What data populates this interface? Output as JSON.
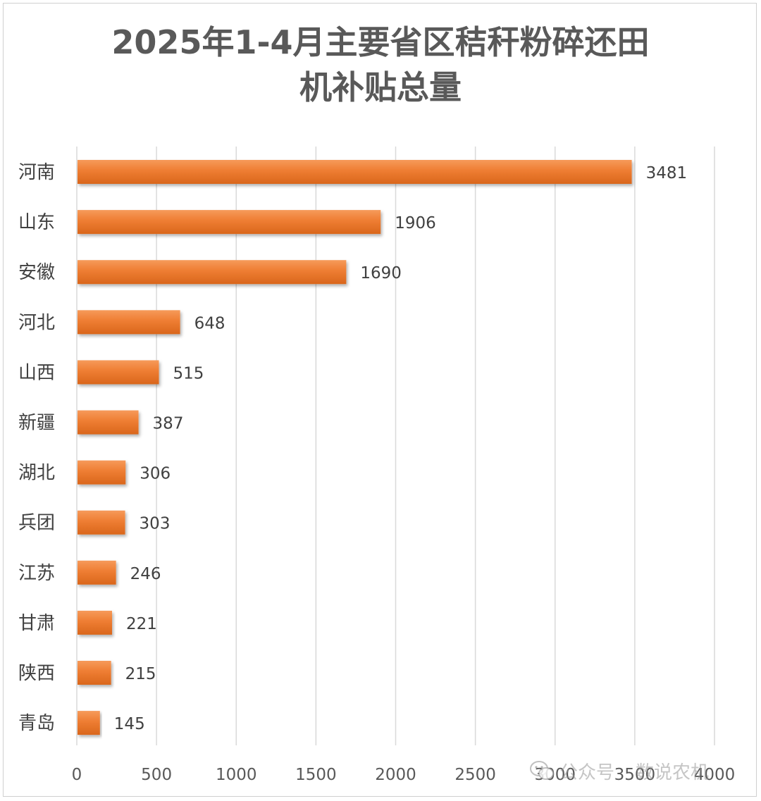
{
  "chart_data": {
    "type": "bar",
    "orientation": "horizontal",
    "title_line1": "2025年1-4月主要省区秸秆粉碎还田",
    "title_line2": "机补贴总量",
    "categories": [
      "河南",
      "山东",
      "安徽",
      "河北",
      "山西",
      "新疆",
      "湖北",
      "兵团",
      "江苏",
      "甘肃",
      "陕西",
      "青岛"
    ],
    "values": [
      3481,
      1906,
      1690,
      648,
      515,
      387,
      306,
      303,
      246,
      221,
      215,
      145
    ],
    "xlim": [
      0,
      4000
    ],
    "xticks": [
      "0",
      "500",
      "1000",
      "1500",
      "2000",
      "2500",
      "3000",
      "3500",
      "4000"
    ],
    "grid": true,
    "bar_color": "#ed7d31"
  },
  "watermark": {
    "icon": "wechat-icon",
    "account": "公众号",
    "name": "数说农机"
  }
}
